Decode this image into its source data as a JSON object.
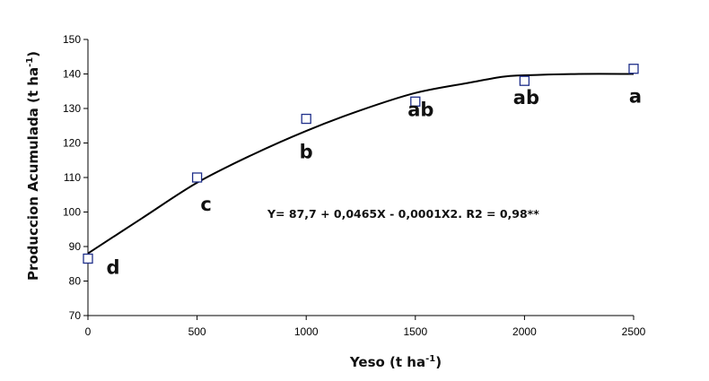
{
  "chart_data": {
    "type": "scatter",
    "xlabel": "Yeso (t ha",
    "xlabel_sup": "-1",
    "xlabel_end": ")",
    "ylabel": "Produccion Acumulada (t ha",
    "ylabel_sup": "-1",
    "ylabel_end": ")",
    "xlim": [
      0,
      2500
    ],
    "ylim": [
      70,
      150
    ],
    "x_ticks": [
      0,
      500,
      1000,
      1500,
      2000,
      2500
    ],
    "x_tick_labels": [
      "0",
      "500",
      "1000",
      "1500",
      "2000",
      "2500"
    ],
    "y_ticks": [
      70,
      80,
      90,
      100,
      110,
      120,
      130,
      140,
      150
    ],
    "y_tick_labels": [
      "70",
      "80",
      "90",
      "100",
      "110",
      "120",
      "130",
      "140",
      "150"
    ],
    "grid": false,
    "series": [
      {
        "marker": "square",
        "color": "#1f2f8a",
        "x": [
          0,
          500,
          1000,
          1500,
          2000,
          2500
        ],
        "y": [
          86.5,
          110,
          127,
          132,
          138,
          141.5
        ],
        "labels": [
          "d",
          "c",
          "b",
          "ab",
          "ab",
          "a"
        ]
      }
    ],
    "fit": {
      "equation": "Y= 87,7 + 0,0465X - 0,0001X2.  R2 = 0,98**",
      "x": [
        0,
        250,
        500,
        750,
        1000,
        1250,
        1500,
        1750,
        1900,
        2000,
        2250,
        2500
      ],
      "y": [
        88,
        98.3,
        108.5,
        116.5,
        123.5,
        129.5,
        134.5,
        137.5,
        139.2,
        139.6,
        140,
        140
      ]
    }
  }
}
